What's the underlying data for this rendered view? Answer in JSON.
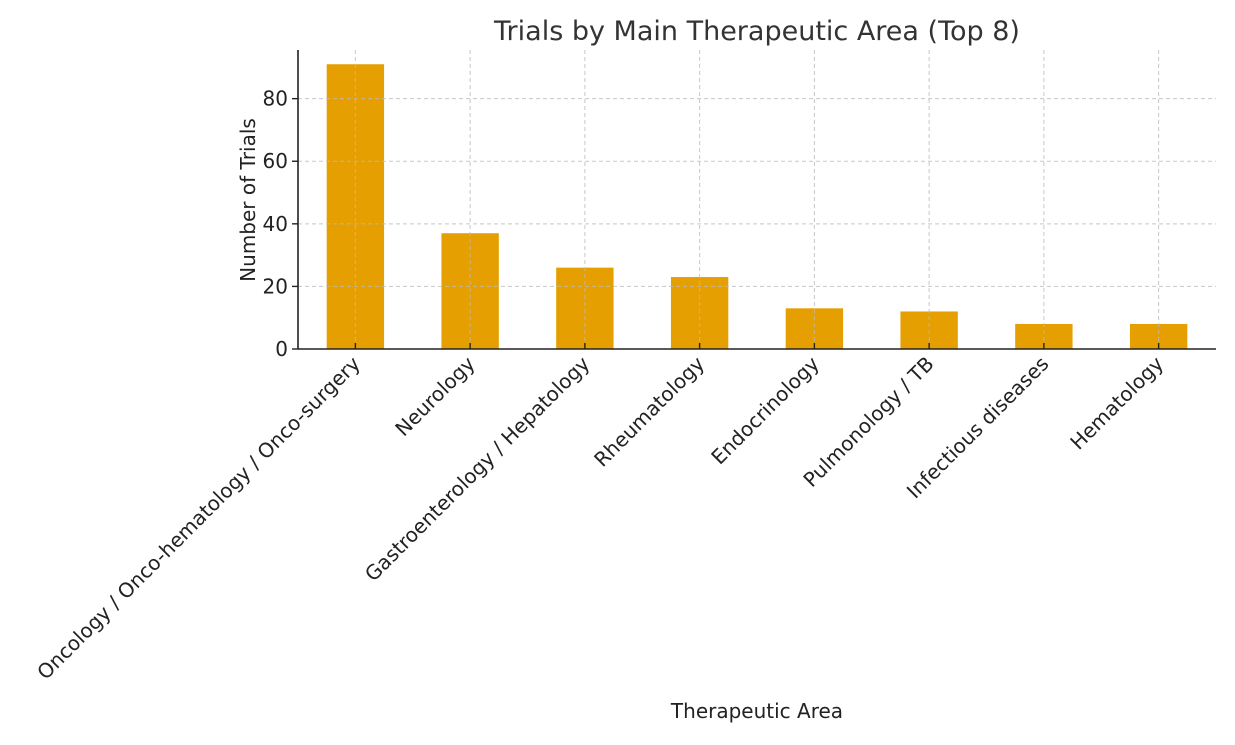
{
  "chart_data": {
    "type": "bar",
    "title": "Trials by Main Therapeutic Area (Top 8)",
    "xlabel": "Therapeutic Area",
    "ylabel": "Number of Trials",
    "categories": [
      "Oncology / Onco-hematology / Onco-surgery",
      "Neurology",
      "Gastroenterology / Hepatology",
      "Rheumatology",
      "Endocrinology",
      "Pulmonology / TB",
      "Infectious diseases",
      "Hematology"
    ],
    "values": [
      91,
      37,
      26,
      23,
      13,
      12,
      8,
      8
    ],
    "ylim": [
      0,
      95.55
    ],
    "yticks": [
      0,
      20,
      40,
      60,
      80
    ],
    "grid": true,
    "bar_color": "#E69F00",
    "legend": "none"
  }
}
